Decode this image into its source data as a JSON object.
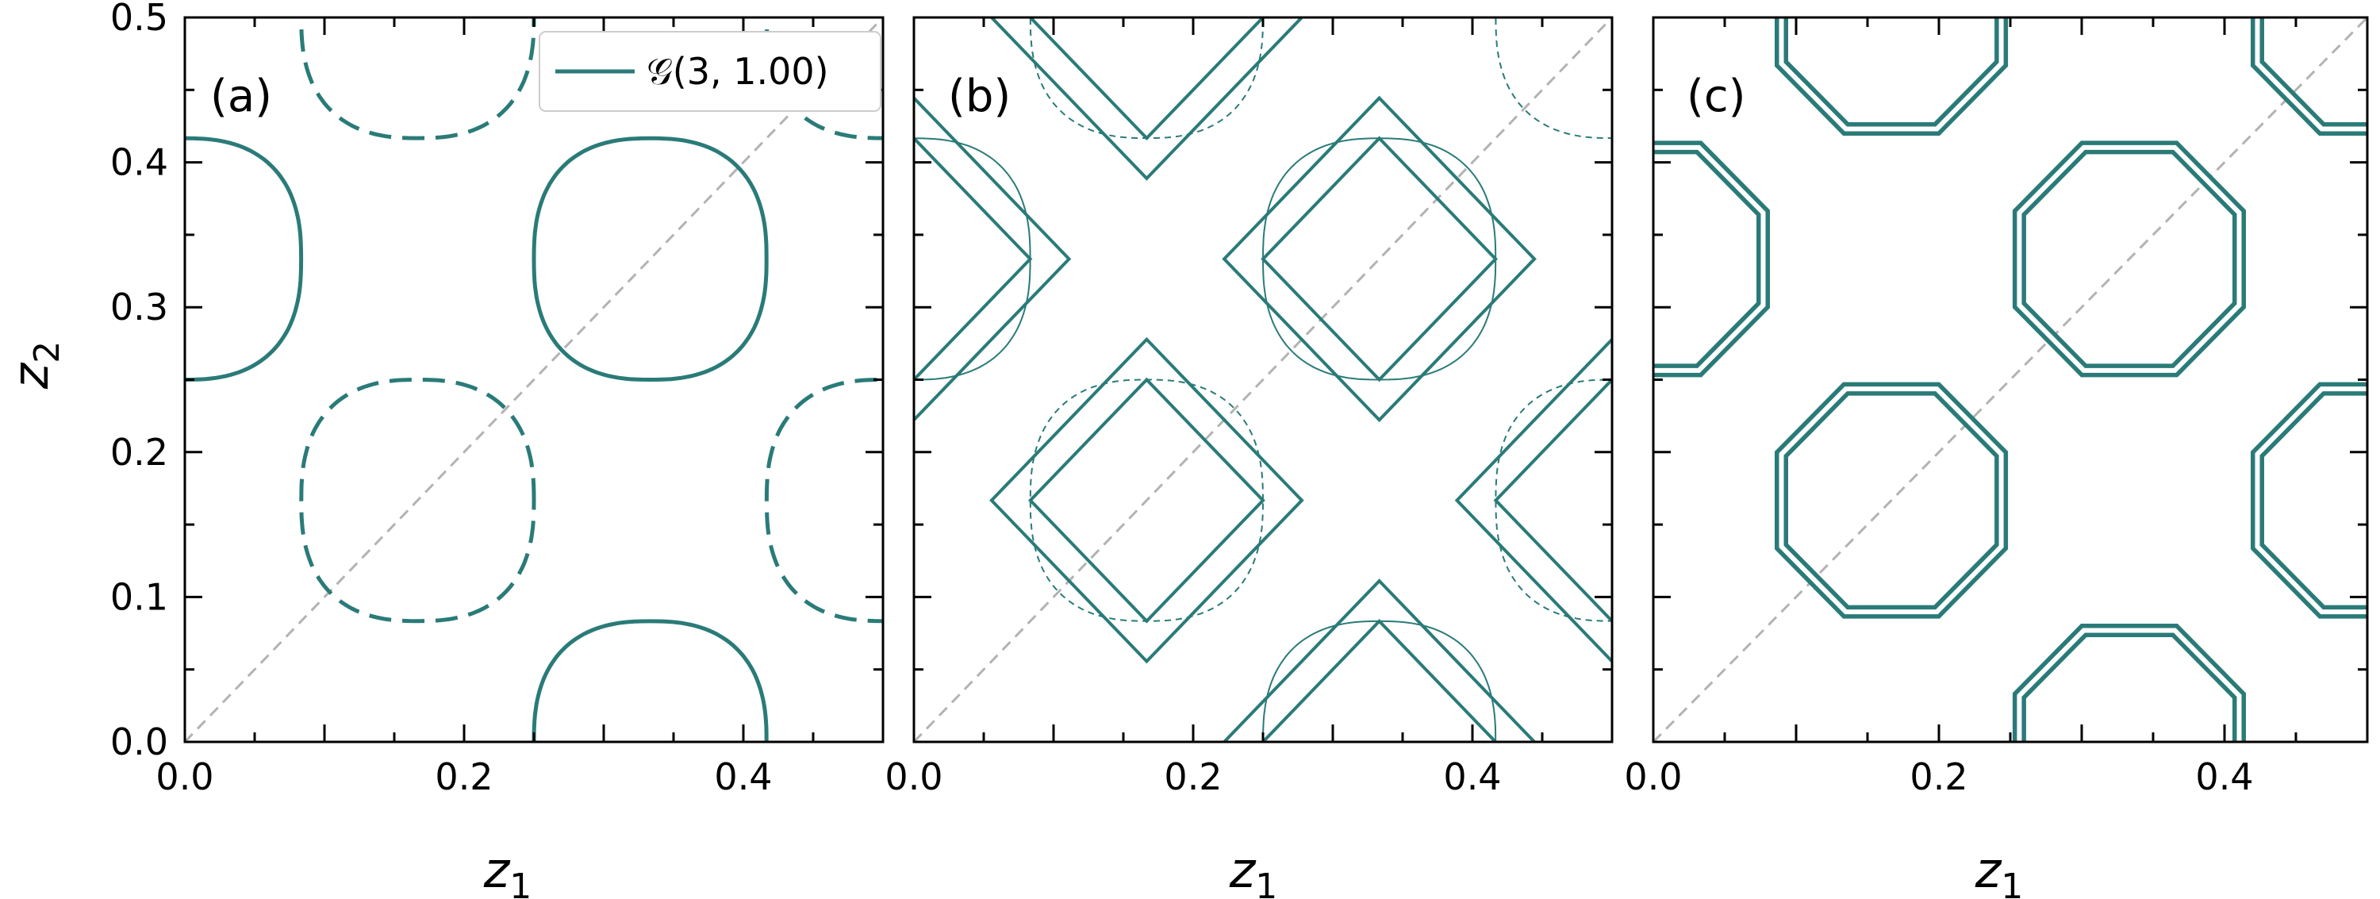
{
  "figure": {
    "xlabel_main": "z",
    "xlabel_sub": "1",
    "ylabel_main": "z",
    "ylabel_sub": "2",
    "color": "#2a7b78",
    "diag_color": "#b3b3b3"
  },
  "chart_data": [
    {
      "type": "line",
      "panel_label": "(a)",
      "xlim": [
        0,
        0.5
      ],
      "ylim": [
        0,
        0.5
      ],
      "xticks": [
        "0.0",
        "0.2",
        "0.4"
      ],
      "yticks": [
        "0.0",
        "0.1",
        "0.2",
        "0.3",
        "0.4",
        "0.5"
      ],
      "legend": {
        "label": "𝒢(3, 1.00)",
        "position": "top-right"
      },
      "series": [
        {
          "style": "solid",
          "shape": "curved_square",
          "centers": [
            [
              0.3333,
              0.3333
            ],
            [
              0.0,
              0.3333
            ],
            [
              0.3333,
              0.0
            ]
          ],
          "half_extent": 0.0833,
          "exponent": 2.5
        },
        {
          "style": "dashed",
          "shape": "curved_square",
          "centers": [
            [
              0.1667,
              0.1667
            ],
            [
              0.5,
              0.1667
            ],
            [
              0.1667,
              0.5
            ],
            [
              0.5,
              0.5
            ]
          ],
          "half_extent": 0.0833,
          "exponent": 2.5
        }
      ],
      "diagonal": true
    },
    {
      "type": "line",
      "panel_label": "(b)",
      "xlim": [
        0,
        0.5
      ],
      "ylim": [
        0,
        0.5
      ],
      "xticks": [
        "0.0",
        "0.2",
        "0.4"
      ],
      "yticks": [
        "0.0",
        "0.1",
        "0.2",
        "0.3",
        "0.4",
        "0.5"
      ],
      "series": [
        {
          "style": "solid",
          "shape": "diamond",
          "centers": [
            [
              0.3333,
              0.3333
            ],
            [
              0.0,
              0.3333
            ],
            [
              0.3333,
              0.0
            ],
            [
              0.1667,
              0.1667
            ],
            [
              0.5,
              0.1667
            ],
            [
              0.1667,
              0.5
            ]
          ],
          "half_extents": [
            0.0833,
            0.1111
          ]
        },
        {
          "style": "thin_solid",
          "shape": "curved_square",
          "centers": [
            [
              0.3333,
              0.3333
            ],
            [
              0.0,
              0.3333
            ],
            [
              0.3333,
              0.0
            ]
          ],
          "half_extent": 0.0833,
          "exponent": 2.5
        },
        {
          "style": "thin_dashed",
          "shape": "curved_square",
          "centers": [
            [
              0.1667,
              0.1667
            ],
            [
              0.5,
              0.1667
            ],
            [
              0.1667,
              0.5
            ],
            [
              0.5,
              0.5
            ]
          ],
          "half_extent": 0.0833,
          "exponent": 2.5
        }
      ],
      "diagonal": true
    },
    {
      "type": "line",
      "panel_label": "(c)",
      "xlim": [
        0,
        0.5
      ],
      "ylim": [
        0,
        0.5
      ],
      "xticks": [
        "0.0",
        "0.2",
        "0.4"
      ],
      "yticks": [
        "0.0",
        "0.1",
        "0.2",
        "0.3",
        "0.4",
        "0.5"
      ],
      "series": [
        {
          "style": "double",
          "shape": "octagon",
          "centers": [
            [
              0.3333,
              0.3333
            ],
            [
              0.0,
              0.3333
            ],
            [
              0.3333,
              0.0
            ],
            [
              0.1667,
              0.1667
            ],
            [
              0.5,
              0.1667
            ],
            [
              0.1667,
              0.5
            ],
            [
              0.5,
              0.5
            ]
          ],
          "radius": 0.0833
        }
      ],
      "diagonal": true
    }
  ]
}
